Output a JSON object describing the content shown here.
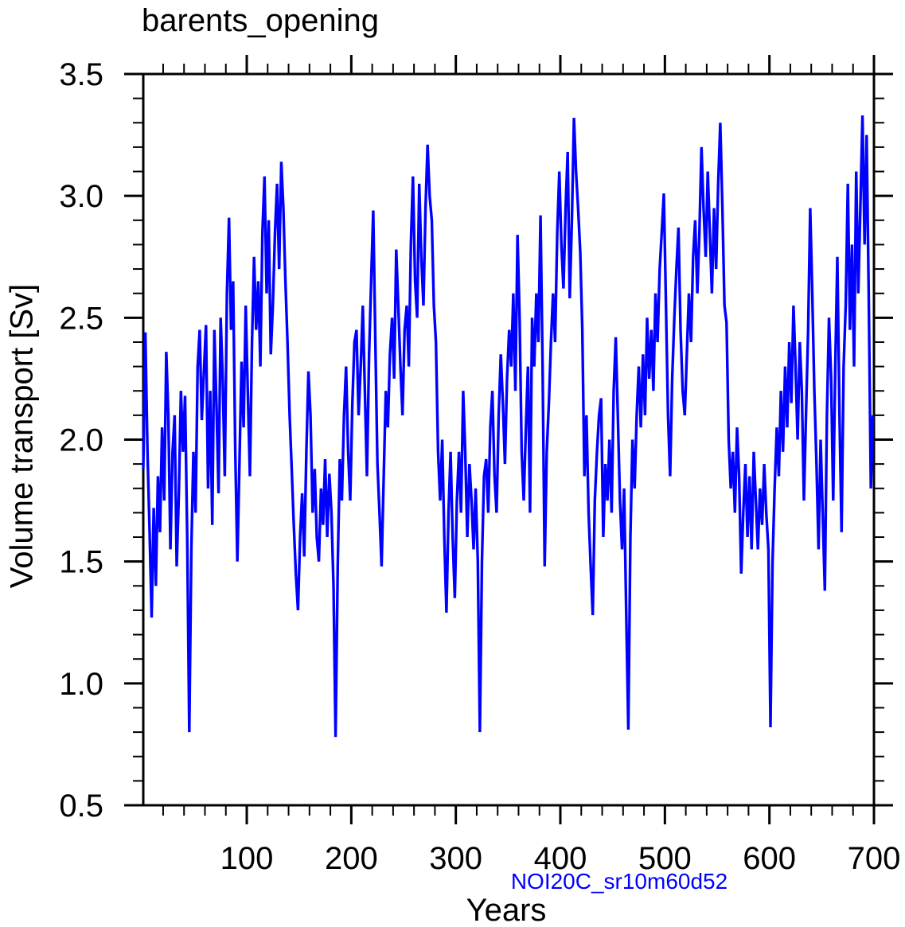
{
  "chart_data": {
    "type": "line",
    "title": "barents_opening",
    "xlabel": "Years",
    "ylabel": "Volume transport [Sv]",
    "annotation": "NOI20C_sr10m60d52",
    "line_color": "#0000FF",
    "annotation_color": "#0000FF",
    "axis_color": "#000000",
    "background_color": "#FFFFFF",
    "grid": "off",
    "legend": "none",
    "xlim": [
      1,
      700
    ],
    "ylim": [
      0.5,
      3.5
    ],
    "x_major": {
      "values": [
        100,
        200,
        300,
        400,
        500,
        600,
        700
      ],
      "labels": [
        "100",
        "200",
        "300",
        "400",
        "500",
        "600",
        "700"
      ]
    },
    "x_minor_step": 20,
    "y_major": {
      "values": [
        0.5,
        1.0,
        1.5,
        2.0,
        2.5,
        3.0,
        3.5
      ],
      "labels": [
        "0.5",
        "1.0",
        "1.5",
        "2.0",
        "2.5",
        "3.0",
        "3.5"
      ]
    },
    "y_minor_step": 0.1,
    "x_start": 1,
    "x_step": 2,
    "values": [
      1.88,
      2.44,
      1.95,
      1.63,
      1.27,
      1.72,
      1.4,
      1.85,
      1.62,
      2.05,
      1.75,
      2.36,
      2.1,
      1.55,
      1.95,
      2.1,
      1.48,
      1.78,
      2.2,
      1.95,
      2.18,
      1.6,
      0.8,
      1.55,
      1.95,
      1.7,
      2.3,
      2.45,
      2.08,
      2.28,
      2.47,
      1.8,
      2.2,
      1.65,
      2.45,
      2.15,
      1.78,
      2.5,
      2.25,
      1.85,
      2.6,
      2.91,
      2.45,
      2.65,
      1.95,
      1.5,
      1.9,
      2.32,
      2.05,
      2.55,
      2.2,
      1.85,
      2.4,
      2.75,
      2.45,
      2.65,
      2.3,
      2.85,
      3.08,
      2.6,
      2.9,
      2.35,
      2.55,
      2.85,
      3.05,
      2.7,
      3.14,
      2.95,
      2.65,
      2.4,
      2.1,
      1.88,
      1.65,
      1.45,
      1.3,
      1.6,
      1.78,
      1.52,
      1.95,
      2.28,
      2.1,
      1.7,
      1.88,
      1.6,
      1.5,
      1.8,
      1.65,
      1.92,
      1.6,
      1.86,
      1.7,
      1.4,
      0.78,
      1.48,
      1.92,
      1.75,
      2.1,
      2.3,
      1.95,
      1.75,
      2.15,
      2.4,
      2.45,
      2.1,
      2.3,
      2.55,
      2.2,
      1.85,
      2.35,
      2.65,
      2.94,
      2.4,
      1.9,
      1.7,
      1.48,
      1.85,
      2.2,
      2.05,
      2.35,
      2.5,
      2.25,
      2.78,
      2.55,
      2.3,
      2.1,
      2.45,
      2.55,
      2.3,
      2.8,
      3.08,
      2.65,
      2.5,
      3.05,
      2.75,
      2.55,
      2.95,
      3.21,
      3.0,
      2.9,
      2.55,
      2.4,
      1.95,
      1.75,
      2.0,
      1.6,
      1.29,
      1.7,
      1.95,
      1.6,
      1.35,
      1.75,
      1.95,
      1.7,
      2.2,
      1.95,
      1.6,
      1.9,
      1.75,
      1.55,
      1.8,
      1.5,
      0.8,
      1.5,
      1.85,
      1.92,
      1.7,
      2.05,
      2.2,
      1.85,
      1.7,
      2.1,
      2.35,
      2.15,
      1.9,
      2.25,
      2.45,
      2.3,
      2.6,
      2.2,
      2.84,
      2.5,
      1.95,
      1.75,
      2.05,
      2.3,
      1.7,
      2.5,
      2.3,
      2.6,
      2.4,
      2.92,
      2.3,
      1.48,
      1.95,
      2.15,
      2.4,
      2.6,
      2.4,
      2.85,
      3.1,
      2.8,
      2.62,
      2.95,
      3.18,
      2.58,
      2.9,
      3.32,
      3.1,
      2.95,
      2.77,
      2.45,
      1.85,
      2.1,
      1.7,
      1.48,
      1.28,
      1.75,
      1.95,
      2.1,
      2.17,
      1.6,
      1.9,
      1.75,
      2.0,
      1.7,
      2.2,
      2.42,
      2.1,
      1.75,
      1.55,
      1.8,
      1.3,
      0.81,
      1.6,
      2.0,
      1.8,
      2.1,
      2.3,
      2.05,
      2.35,
      2.1,
      2.5,
      2.25,
      2.45,
      2.2,
      2.6,
      2.4,
      2.7,
      2.85,
      3.01,
      2.55,
      2.1,
      1.85,
      2.25,
      2.5,
      2.7,
      2.87,
      2.45,
      2.2,
      2.1,
      2.35,
      2.6,
      2.4,
      2.75,
      2.9,
      2.6,
      2.85,
      3.2,
      2.95,
      2.75,
      3.1,
      2.85,
      2.6,
      2.95,
      2.7,
      3.05,
      3.3,
      2.95,
      2.55,
      2.48,
      2.0,
      1.8,
      1.95,
      1.7,
      2.05,
      1.85,
      1.45,
      1.7,
      1.9,
      1.6,
      1.85,
      1.55,
      1.95,
      1.75,
      1.55,
      1.8,
      1.65,
      1.9,
      1.7,
      1.55,
      0.82,
      1.5,
      1.8,
      2.05,
      1.85,
      2.2,
      1.95,
      2.3,
      2.05,
      2.4,
      2.15,
      2.55,
      2.3,
      2.0,
      2.4,
      2.2,
      1.75,
      2.1,
      2.45,
      2.95,
      2.6,
      2.2,
      1.9,
      1.55,
      2.0,
      1.7,
      1.38,
      2.1,
      2.5,
      2.25,
      1.75,
      2.3,
      2.75,
      2.1,
      1.62,
      2.3,
      2.55,
      3.05,
      2.45,
      2.8,
      2.3,
      3.1,
      2.6,
      2.95,
      3.33,
      2.8,
      3.25,
      2.6,
      1.8,
      2.1
    ]
  }
}
